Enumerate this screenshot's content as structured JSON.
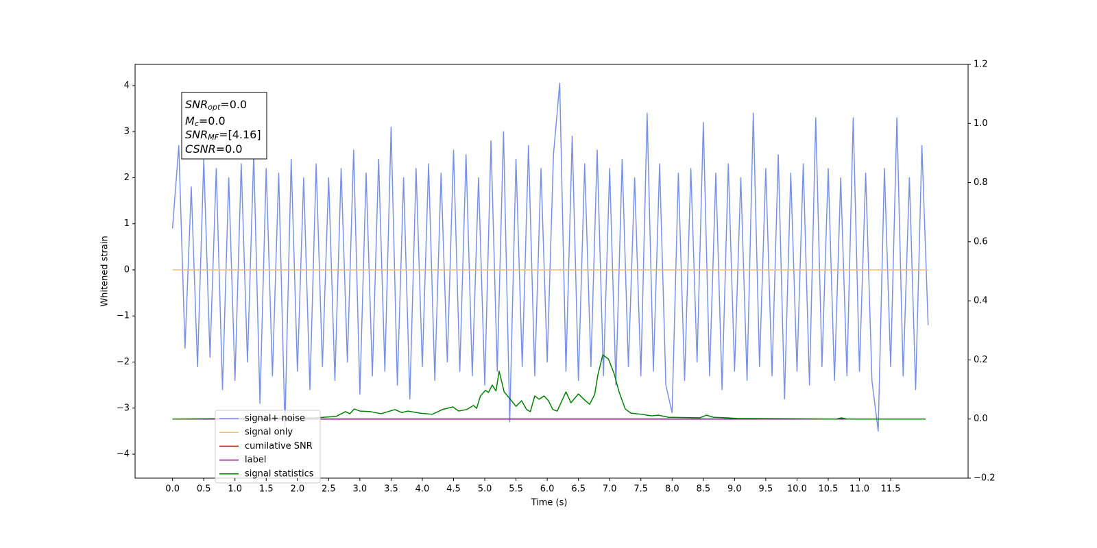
{
  "chart_data": {
    "type": "line",
    "xlabel": "Time (s)",
    "ylabel": "Whitened strain",
    "xlim": [
      -0.6,
      12.74
    ],
    "ylim": [
      -4.52,
      4.46
    ],
    "y2lim": [
      -0.2,
      1.2
    ],
    "xticks": [
      {
        "value": 0,
        "label": "0.0"
      },
      {
        "value": 0.5,
        "label": "0.5"
      },
      {
        "value": 1,
        "label": "1.0"
      },
      {
        "value": 1.5,
        "label": "1.5"
      },
      {
        "value": 2,
        "label": "2.0"
      },
      {
        "value": 2.5,
        "label": "2.5"
      },
      {
        "value": 3,
        "label": "3.0"
      },
      {
        "value": 3.5,
        "label": "3.5"
      },
      {
        "value": 4,
        "label": "4.0"
      },
      {
        "value": 4.5,
        "label": "4.5"
      },
      {
        "value": 5,
        "label": "5.0"
      },
      {
        "value": 5.5,
        "label": "5.5"
      },
      {
        "value": 6,
        "label": "6.0"
      },
      {
        "value": 6.5,
        "label": "6.5"
      },
      {
        "value": 7,
        "label": "7.0"
      },
      {
        "value": 7.5,
        "label": "7.5"
      },
      {
        "value": 8,
        "label": "8.0"
      },
      {
        "value": 8.5,
        "label": "8.5"
      },
      {
        "value": 9,
        "label": "9.0"
      },
      {
        "value": 9.5,
        "label": "9.5"
      },
      {
        "value": 10,
        "label": "10.0"
      },
      {
        "value": 10.5,
        "label": "10.5"
      },
      {
        "value": 11,
        "label": "11.0"
      },
      {
        "value": 11.5,
        "label": "11.5"
      }
    ],
    "yticks": [
      {
        "value": -4,
        "label": "−4"
      },
      {
        "value": -3,
        "label": "−3"
      },
      {
        "value": -2,
        "label": "−2"
      },
      {
        "value": -1,
        "label": "−1"
      },
      0,
      1,
      2,
      3,
      4
    ],
    "y2ticks": [
      {
        "value": -0.2,
        "label": "−0.2"
      },
      {
        "value": 0,
        "label": "0.0"
      },
      {
        "value": 0.2,
        "label": "0.2"
      },
      {
        "value": 0.4,
        "label": "0.4"
      },
      {
        "value": 0.6,
        "label": "0.6"
      },
      {
        "value": 0.8,
        "label": "0.8"
      },
      {
        "value": 1,
        "label": "1.0"
      },
      {
        "value": 1.2,
        "label": "1.2"
      }
    ],
    "grid": false,
    "annotations": [
      {
        "symbol": "SNR",
        "subscript": "opt",
        "text": "=0.0"
      },
      {
        "symbol": "M",
        "subscript": "c",
        "text": "=0.0"
      },
      {
        "symbol": "SNR",
        "subscript": "MF",
        "text": "=[4.16]"
      },
      {
        "symbol": "CSNR",
        "text": "=0.0"
      }
    ],
    "series": [
      {
        "name": "signal+ noise",
        "color": "#7891e6",
        "axis": "y",
        "x": [
          0,
          0.1,
          0.2,
          0.3,
          0.4,
          0.5,
          0.6,
          0.7,
          0.8,
          0.9,
          1,
          1.1,
          1.2,
          1.3,
          1.4,
          1.5,
          1.6,
          1.7,
          1.8,
          1.9,
          2,
          2.1,
          2.2,
          2.3,
          2.4,
          2.5,
          2.6,
          2.7,
          2.8,
          2.9,
          3,
          3.1,
          3.2,
          3.3,
          3.4,
          3.5,
          3.6,
          3.7,
          3.8,
          3.9,
          4,
          4.1,
          4.2,
          4.3,
          4.4,
          4.5,
          4.6,
          4.7,
          4.8,
          4.9,
          5,
          5.1,
          5.2,
          5.3,
          5.4,
          5.5,
          5.6,
          5.7,
          5.8,
          5.9,
          6,
          6.1,
          6.2,
          6.3,
          6.4,
          6.5,
          6.6,
          6.7,
          6.8,
          6.9,
          7,
          7.1,
          7.2,
          7.3,
          7.4,
          7.5,
          7.6,
          7.7,
          7.8,
          7.9,
          8,
          8.1,
          8.2,
          8.3,
          8.4,
          8.5,
          8.6,
          8.7,
          8.8,
          8.9,
          9,
          9.1,
          9.2,
          9.3,
          9.4,
          9.5,
          9.6,
          9.7,
          9.8,
          9.9,
          10,
          10.1,
          10.2,
          10.3,
          10.4,
          10.5,
          10.6,
          10.7,
          10.8,
          10.9,
          11,
          11.1,
          11.2,
          11.3,
          11.4,
          11.5,
          11.6,
          11.7,
          11.8,
          11.9,
          12,
          12.1
        ],
        "values": [
          0.9,
          2.7,
          -1.7,
          1.8,
          -2.1,
          2.4,
          -1.9,
          2.2,
          -2.6,
          2.0,
          -2.4,
          2.3,
          -2.0,
          2.5,
          -2.9,
          2.2,
          -2.3,
          2.1,
          -3.4,
          2.4,
          -2.2,
          2.0,
          -2.6,
          2.3,
          -2.1,
          2.0,
          -2.4,
          2.2,
          -2.0,
          2.6,
          -2.7,
          2.1,
          -2.3,
          2.4,
          -2.2,
          3.1,
          -2.5,
          2.0,
          -2.8,
          2.2,
          -2.1,
          2.3,
          -2.4,
          2.1,
          -2.0,
          2.6,
          -2.2,
          2.5,
          -2.3,
          2.0,
          -2.5,
          2.8,
          -2.2,
          3.0,
          -3.3,
          2.4,
          -2.1,
          2.7,
          -2.3,
          2.2,
          -2.0,
          2.5,
          4.05,
          -2.2,
          2.9,
          -2.4,
          2.3,
          -2.1,
          2.6,
          -2.3,
          2.2,
          -2.5,
          2.4,
          -2.1,
          2.0,
          -2.3,
          3.4,
          -2.2,
          2.3,
          -2.5,
          -3.1,
          2.1,
          -2.4,
          2.2,
          -2.0,
          3.2,
          -2.3,
          2.1,
          -2.6,
          2.3,
          -2.2,
          2.0,
          -2.4,
          3.4,
          -2.1,
          2.2,
          -2.3,
          2.5,
          -2.8,
          2.1,
          -2.2,
          2.3,
          -2.5,
          3.3,
          -2.1,
          2.2,
          -2.4,
          2.0,
          -2.3,
          3.3,
          -2.2,
          2.1,
          -2.4,
          -3.5,
          2.2,
          -2.1,
          3.3,
          -2.3,
          2.0,
          -2.6,
          2.7,
          -1.2
        ]
      },
      {
        "name": "signal only",
        "color": "#ffbf66",
        "axis": "y",
        "x": [
          0,
          12.1
        ],
        "values": [
          0,
          0
        ]
      },
      {
        "name": "cumilative SNR",
        "color": "#ff0000",
        "axis": "y2",
        "x": [
          0,
          12.06
        ],
        "values": [
          0,
          0
        ]
      },
      {
        "name": "label",
        "color": "#800080",
        "axis": "y2",
        "x": [
          0,
          12.06
        ],
        "values": [
          0,
          0
        ]
      },
      {
        "name": "signal statistics",
        "color": "#008000",
        "axis": "y2",
        "x": [
          0,
          2.29,
          2.62,
          2.77,
          2.84,
          2.91,
          3.0,
          3.17,
          3.34,
          3.45,
          3.56,
          3.67,
          3.77,
          3.96,
          4.16,
          4.32,
          4.49,
          4.58,
          4.71,
          4.82,
          4.87,
          4.93,
          5.01,
          5.06,
          5.12,
          5.18,
          5.23,
          5.31,
          5.42,
          5.5,
          5.59,
          5.67,
          5.73,
          5.8,
          5.87,
          5.95,
          6.02,
          6.09,
          6.16,
          6.3,
          6.38,
          6.5,
          6.61,
          6.68,
          6.76,
          6.81,
          6.89,
          6.98,
          7.07,
          7.15,
          7.25,
          7.34,
          7.51,
          7.67,
          7.78,
          7.94,
          8.44,
          8.55,
          8.66,
          8.88,
          9.04,
          10.63,
          10.71,
          10.8,
          12.06
        ],
        "values": [
          0,
          0.004,
          0.009,
          0.025,
          0.018,
          0.034,
          0.027,
          0.025,
          0.018,
          0.025,
          0.032,
          0.022,
          0.027,
          0.02,
          0.016,
          0.032,
          0.041,
          0.027,
          0.032,
          0.046,
          0.036,
          0.078,
          0.097,
          0.09,
          0.115,
          0.095,
          0.162,
          0.092,
          0.064,
          0.043,
          0.062,
          0.032,
          0.025,
          0.078,
          0.067,
          0.078,
          0.062,
          0.032,
          0.027,
          0.092,
          0.055,
          0.085,
          0.062,
          0.05,
          0.083,
          0.148,
          0.217,
          0.203,
          0.155,
          0.092,
          0.034,
          0.02,
          0.016,
          0.011,
          0.013,
          0.006,
          0.004,
          0.013,
          0.006,
          0.004,
          0.002,
          0,
          0.004,
          0,
          0
        ]
      }
    ]
  }
}
